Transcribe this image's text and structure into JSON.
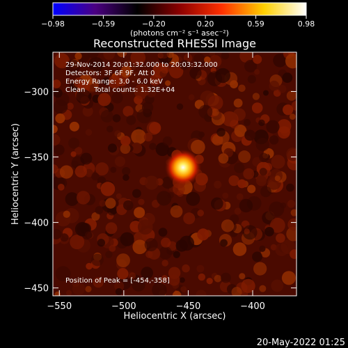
{
  "colorbar": {
    "tick_labels": [
      "−0.98",
      "−0.59",
      "−0.20",
      "0.20",
      "0.59",
      "0.98"
    ],
    "tick_values": [
      -0.98,
      -0.59,
      -0.2,
      0.2,
      0.59,
      0.98
    ],
    "range": [
      -0.98,
      0.98
    ],
    "units_label": "(photons cm⁻² s⁻¹ asec⁻²)",
    "colors": [
      "#0000ff",
      "#4b0082",
      "#000000",
      "#8b0000",
      "#ff3000",
      "#ffd000",
      "#ffffff"
    ]
  },
  "footer": {
    "timestamp": "20-May-2022 01:25"
  },
  "chart_data": {
    "type": "heatmap",
    "title": "Reconstructed RHESSI Image",
    "xlabel": "Heliocentric X (arcsec)",
    "ylabel": "Heliocentric Y (arcsec)",
    "xlim": [
      -555,
      -366
    ],
    "ylim": [
      -456,
      -270
    ],
    "x_ticks": [
      -550,
      -500,
      -450,
      -400
    ],
    "y_ticks": [
      -450,
      -400,
      -350,
      -300
    ],
    "x_tick_labels": [
      "−550",
      "−500",
      "−450",
      "−400"
    ],
    "y_tick_labels": [
      "−450",
      "−400",
      "−350",
      "−300"
    ],
    "annotations": [
      "29-Nov-2014 20:01:32.000 to 20:03:32.000",
      "Detectors: 3F 6F 9F, Att 0",
      "Energy Range: 3.0 - 6.0 keV",
      "Clean    Total counts: 1.32E+04"
    ],
    "peak_label": "Position of Peak = [-454,-358]",
    "peak": {
      "x": -454,
      "y": -358,
      "value": 0.98
    },
    "background_level": 0.2
  }
}
